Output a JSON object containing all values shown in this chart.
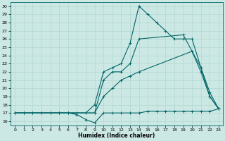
{
  "xlabel": "Humidex (Indice chaleur)",
  "bg_color": "#cce8e4",
  "line_color": "#006666",
  "grid_color": "#aad4cc",
  "xlim": [
    -0.5,
    23.5
  ],
  "ylim": [
    15.5,
    30.5
  ],
  "xticks": [
    0,
    1,
    2,
    3,
    4,
    5,
    6,
    7,
    8,
    9,
    10,
    11,
    12,
    13,
    14,
    15,
    16,
    17,
    18,
    19,
    20,
    21,
    22,
    23
  ],
  "yticks": [
    16,
    17,
    18,
    19,
    20,
    21,
    22,
    23,
    24,
    25,
    26,
    27,
    28,
    29,
    30
  ],
  "lines": [
    {
      "x": [
        0,
        1,
        2,
        3,
        4,
        5,
        6,
        7,
        8,
        9,
        10,
        11,
        12,
        13,
        14,
        15,
        16,
        17,
        18,
        19,
        20,
        21,
        22,
        23
      ],
      "y": [
        17,
        17,
        17,
        17,
        17,
        17,
        17,
        16.8,
        16.2,
        15.8,
        17,
        17,
        17,
        17,
        17,
        17.2,
        17.2,
        17.2,
        17.2,
        17.2,
        17.2,
        17.2,
        17.2,
        17.5
      ]
    },
    {
      "x": [
        0,
        1,
        2,
        3,
        4,
        5,
        6,
        7,
        8,
        9,
        10,
        11,
        12,
        13,
        14,
        15,
        16,
        17,
        18,
        19,
        20,
        21,
        22,
        23
      ],
      "y": [
        17,
        17,
        17,
        17,
        17,
        17,
        17,
        17,
        17,
        18,
        22,
        22.5,
        23,
        25.5,
        30,
        29,
        28,
        27,
        26,
        26,
        26,
        22.5,
        19,
        17.5
      ]
    },
    {
      "x": [
        0,
        9,
        10,
        11,
        12,
        13,
        14,
        19,
        20,
        21,
        22,
        23
      ],
      "y": [
        17,
        17,
        21,
        22,
        22,
        23,
        26,
        26.5,
        24.5,
        22.5,
        19.5,
        17.5
      ]
    },
    {
      "x": [
        0,
        9,
        10,
        11,
        12,
        13,
        14,
        20,
        21,
        22,
        23
      ],
      "y": [
        17,
        17,
        19,
        20,
        21,
        21.5,
        22,
        24.5,
        22,
        19,
        17.5
      ]
    }
  ]
}
